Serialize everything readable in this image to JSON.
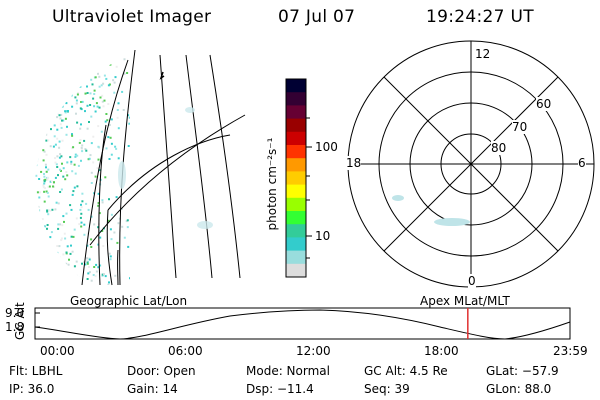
{
  "header": {
    "instrument": "Ultraviolet Imager",
    "date": "07 Jul 07",
    "time": "19:24:27 UT"
  },
  "colorbar": {
    "label": "photon cm⁻²s⁻¹",
    "ticks": [
      "100",
      "10"
    ],
    "colors": [
      "#000033",
      "#330033",
      "#660033",
      "#990000",
      "#cc0000",
      "#ff3300",
      "#ff9900",
      "#ffcc00",
      "#ffff00",
      "#99ff00",
      "#33ff33",
      "#33cc99",
      "#33cccc",
      "#99dddd",
      "#dddddd"
    ]
  },
  "polar_plot": {
    "mlt_labels": {
      "top": "12",
      "bottom": "0",
      "left": "18",
      "right": "6"
    },
    "lat_labels": [
      "60",
      "70",
      "80"
    ]
  },
  "map_labels": {
    "left": "Geographic Lat/Lon",
    "right": "Apex MLat/MLT"
  },
  "altitude_plot": {
    "ylabel": "GC Alt",
    "yticks": [
      "9.0",
      "1.8"
    ],
    "xticks": [
      "00:00",
      "06:00",
      "12:00",
      "18:00",
      "23:59"
    ],
    "current_time_fraction": 0.809
  },
  "footer": {
    "row1": {
      "flt": "Flt: LBHL",
      "door": "Door: Open",
      "mode": "Mode: Normal",
      "gcalt": "GC Alt: 4.5 Re",
      "glat": "GLat: −57.9"
    },
    "row2": {
      "ip": "IP: 36.0",
      "gain": "Gain: 14",
      "dsp": "Dsp: −11.4",
      "seq": "Seq: 39",
      "glon": "GLon: 88.0"
    }
  }
}
